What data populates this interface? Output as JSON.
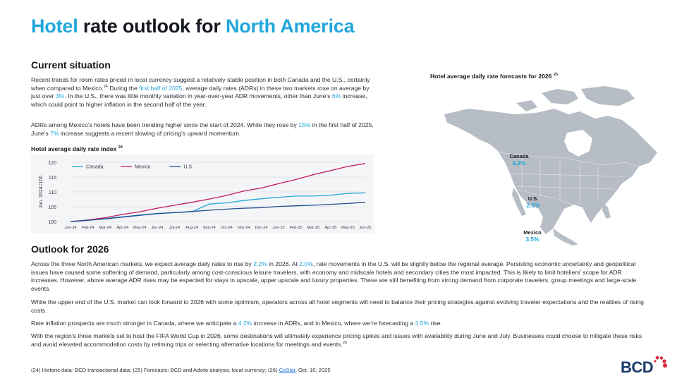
{
  "page": {
    "title_part1": "Hotel",
    "title_part2": " rate outlook for ",
    "title_part3": "North America"
  },
  "current": {
    "heading": "Current situation",
    "p1": [
      {
        "t": "Recent trends for room rates priced in local currency suggest a relatively stable position in both Canada and the U.S., certainly when compared to Mexico."
      },
      {
        "t": "24",
        "sup": true
      },
      {
        "t": " During the "
      },
      {
        "t": "first half of 2025",
        "hl": true
      },
      {
        "t": ", average daily rates (ADRs) in these two markets rose on average by just over "
      },
      {
        "t": "3%",
        "hl": true
      },
      {
        "t": ". In the U.S., there was little monthly variation in year-over-year ADR movements, other than June’s "
      },
      {
        "t": "6%",
        "hl": true
      },
      {
        "t": " increase, which could point to higher inflation in the second half of the year."
      }
    ],
    "p2": [
      {
        "t": "ADRs among Mexico’s hotels have been trending higher since the start of 2024. While they rose by "
      },
      {
        "t": "15%",
        "hl": true
      },
      {
        "t": " in the first half of 2025, June’s "
      },
      {
        "t": "7%",
        "hl": true
      },
      {
        "t": " increase suggests a recent slowing of pricing’s upward momentum."
      }
    ]
  },
  "index_chart": {
    "title": "Hotel average daily rate index",
    "title_sup": "24"
  },
  "chart_data": [
    {
      "type": "line",
      "title": "Hotel average daily rate index",
      "ylabel": "Jan. 2024=100",
      "xlabel": "",
      "ylim": [
        100,
        120
      ],
      "yticks": [
        100,
        105,
        110,
        115,
        120
      ],
      "grid": true,
      "legend": "top-left",
      "categories": [
        "Jan-24",
        "Feb-24",
        "Mar-24",
        "Apr-24",
        "May-24",
        "Jun-24",
        "Jul-24",
        "Aug-24",
        "Sep-24",
        "Oct-24",
        "Nov-24",
        "Dec-24",
        "Jan-25",
        "Feb-25",
        "Mar-25",
        "Apr-25",
        "May-25",
        "Jun-25"
      ],
      "series": [
        {
          "name": "Canada",
          "color": "#22a7dc",
          "values": [
            100,
            100.5,
            101,
            101.6,
            102.2,
            102.7,
            103,
            103.3,
            105.9,
            106.3,
            107.1,
            107.7,
            108.2,
            108.6,
            108.6,
            108.9,
            109.5,
            109.7
          ]
        },
        {
          "name": "Mexico",
          "color": "#c2185b",
          "values": [
            100,
            100.5,
            101.3,
            102.4,
            103.3,
            104.5,
            105.5,
            106.5,
            107.6,
            108.8,
            110.3,
            111.3,
            112.8,
            114.2,
            115.8,
            117.2,
            118.6,
            119.6
          ]
        },
        {
          "name": "U.S.",
          "color": "#1f4e8c",
          "values": [
            100,
            100.4,
            100.9,
            101.5,
            102.1,
            102.7,
            103.0,
            103.4,
            103.8,
            104.2,
            104.5,
            104.7,
            105.1,
            105.3,
            105.5,
            105.8,
            106.1,
            106.5
          ]
        }
      ]
    },
    {
      "type": "table",
      "title": "Hotel average daily rate forecasts for 2026",
      "categories": [
        "Canada",
        "U.S.",
        "Mexico"
      ],
      "labels": [
        "4.2%",
        "2.0%",
        "3.5%"
      ],
      "values": [
        4.2,
        2.0,
        3.5
      ]
    }
  ],
  "map": {
    "title": "Hotel average daily rate forecasts for 2026",
    "title_sup": "25",
    "canada_label": "Canada",
    "canada_value": "4.2%",
    "us_label": "U.S.",
    "us_value": "2.0%",
    "mexico_label": "Mexico",
    "mexico_value": "3.5%",
    "land_color": "#b7bdc4"
  },
  "outlook": {
    "heading": "Outlook for 2026",
    "p1": [
      {
        "t": "Across the three North American markets, we expect average daily rates to rise by "
      },
      {
        "t": "2.2%",
        "hl": true
      },
      {
        "t": " in 2026. At "
      },
      {
        "t": "2.0%",
        "hl": true
      },
      {
        "t": ", rate movements in the U.S. will be slightly below the regional average. Persisting economic uncertainty and geopolitical issues have caused some softening of demand, particularly among cost-conscious leisure travelers, with economy and midscale hotels and secondary cities the most impacted. This is likely to limit hoteliers’ scope for ADR increases. However, above average ADR rises may be expected for stays in upscale, upper upscale and luxury properties. These are still benefiting from strong demand from corporate travelers, group meetings and large-scale events."
      }
    ],
    "p2": [
      {
        "t": "While the upper end of the U.S. market can look forward to 2026 with some optimism, operators across all hotel segments will need to balance their pricing strategies against evolving traveler expectations and the realities of rising costs."
      }
    ],
    "p3": [
      {
        "t": "Rate inflation prospects are much stronger in Canada, where we anticipate a "
      },
      {
        "t": "4.2%",
        "hl": true
      },
      {
        "t": " increase in ADRs, and in Mexico, where we’re forecasting a "
      },
      {
        "t": "3.5%",
        "hl": true
      },
      {
        "t": " rise."
      }
    ],
    "p4": [
      {
        "t": "With the region’s three markets set to host the FIFA World Cup in 2026, some destinations will ultimately experience pricing spikes and issues with availability during June and July. Businesses could choose to mitigate these risks and avoid elevated accommodation costs by retiming trips or selecting alternative locations for meetings and events."
      },
      {
        "t": "26",
        "sup": true
      }
    ]
  },
  "footnote": {
    "text_before": "(24) Historic data: BCD transactional data; (25) Forecasts: BCD and Advito analysis, local currency; (26) ",
    "link": "CoStar",
    "text_after": ", Oct. 10, 2025"
  },
  "brand": {
    "logo_text": "BCD",
    "logo_color": "#1b3a6b",
    "dot_color": "#e0263a",
    "accent_color": "#22a7dc"
  }
}
